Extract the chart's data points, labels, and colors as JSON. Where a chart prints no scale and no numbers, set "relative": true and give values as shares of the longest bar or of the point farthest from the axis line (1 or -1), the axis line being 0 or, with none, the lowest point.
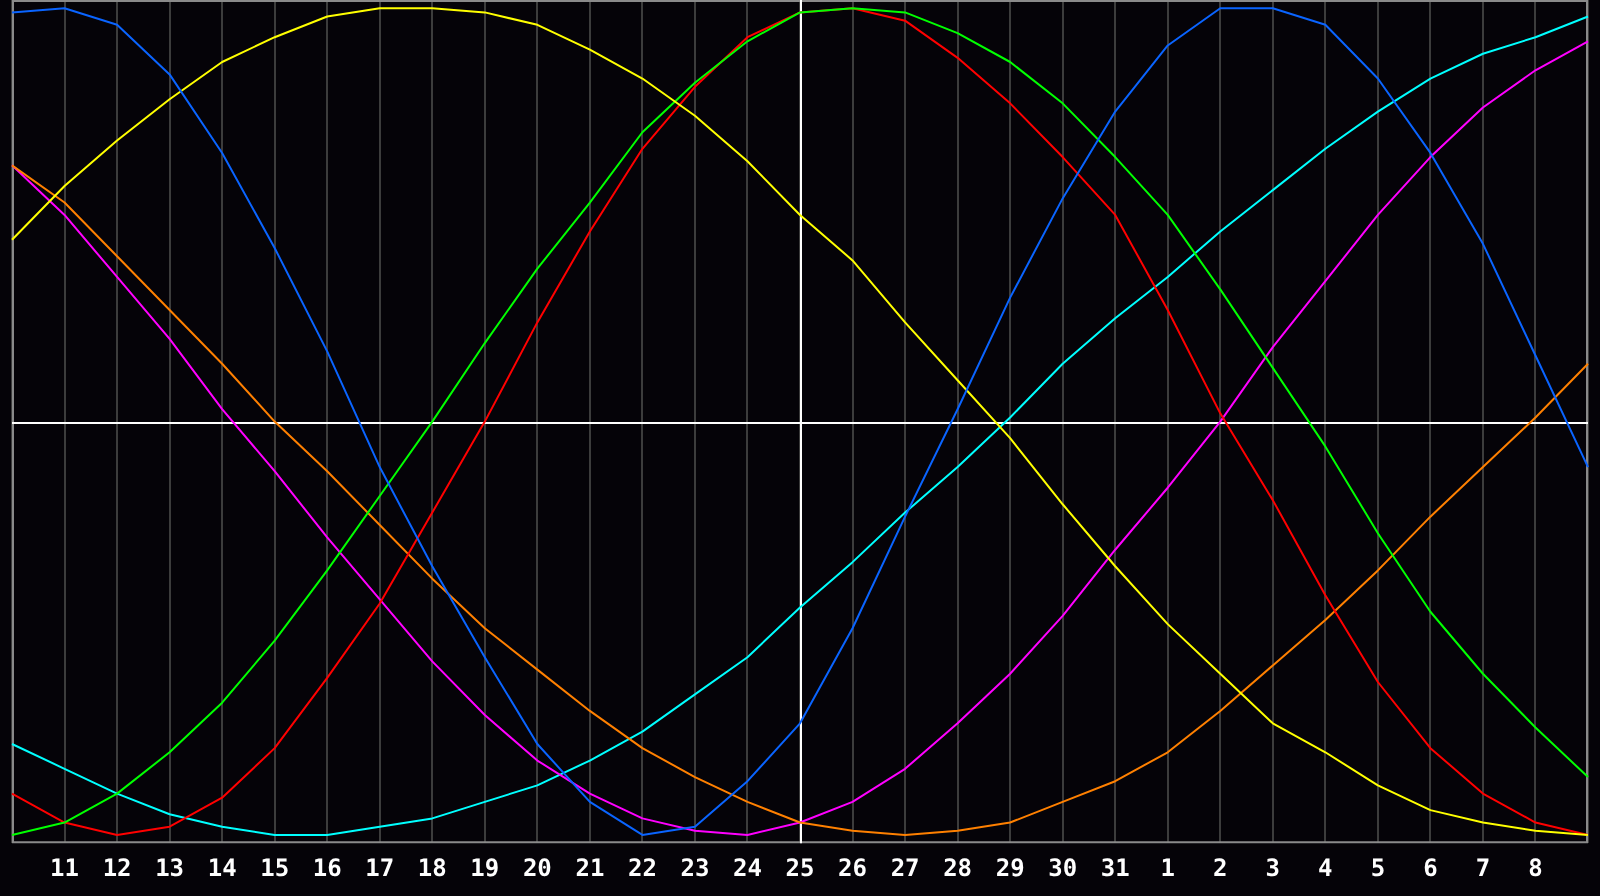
{
  "chart_data": {
    "type": "line",
    "relative": true,
    "grid": "x",
    "legend": false,
    "categories": [
      null,
      "11",
      "12",
      "13",
      "14",
      "15",
      "16",
      "17",
      "18",
      "19",
      "20",
      "21",
      "22",
      "23",
      "24",
      "25",
      "26",
      "27",
      "28",
      "29",
      "30",
      "31",
      "1",
      "2",
      "3",
      "4",
      "5",
      "6",
      "7",
      "8",
      null
    ],
    "series": [
      {
        "color": "#0a64ff",
        "values": [
          0.99,
          1.0,
          0.96,
          0.84,
          0.65,
          0.42,
          0.17,
          -0.11,
          -0.35,
          -0.57,
          -0.78,
          -0.92,
          -1.0,
          -0.98,
          -0.87,
          -0.73,
          -0.5,
          -0.23,
          0.03,
          0.3,
          0.54,
          0.75,
          0.91,
          1.0,
          1.0,
          0.96,
          0.83,
          0.65,
          0.43,
          0.16,
          -0.11
        ]
      },
      {
        "color": "#ffff00",
        "values": [
          0.44,
          0.57,
          0.68,
          0.78,
          0.87,
          0.93,
          0.98,
          1.0,
          1.0,
          0.99,
          0.96,
          0.9,
          0.83,
          0.74,
          0.63,
          0.5,
          0.39,
          0.24,
          0.1,
          -0.04,
          -0.2,
          -0.35,
          -0.49,
          -0.61,
          -0.73,
          -0.8,
          -0.88,
          -0.94,
          -0.97,
          -0.99,
          -1.0
        ]
      },
      {
        "color": "#00ff00",
        "values": [
          -1.0,
          -0.97,
          -0.9,
          -0.8,
          -0.68,
          -0.53,
          -0.36,
          -0.18,
          0.0,
          0.19,
          0.37,
          0.53,
          0.7,
          0.82,
          0.92,
          0.99,
          1.0,
          0.99,
          0.94,
          0.87,
          0.77,
          0.64,
          0.5,
          0.32,
          0.13,
          -0.06,
          -0.27,
          -0.46,
          -0.61,
          -0.74,
          -0.86
        ]
      },
      {
        "color": "#ff0000",
        "values": [
          -0.9,
          -0.97,
          -1.0,
          -0.98,
          -0.91,
          -0.79,
          -0.62,
          -0.44,
          -0.22,
          0.0,
          0.24,
          0.46,
          0.66,
          0.81,
          0.93,
          0.99,
          1.0,
          0.97,
          0.88,
          0.77,
          0.64,
          0.5,
          0.27,
          0.02,
          -0.19,
          -0.42,
          -0.63,
          -0.79,
          -0.9,
          -0.97,
          -1.0
        ]
      },
      {
        "color": "#ff8000",
        "values": [
          0.62,
          0.53,
          0.4,
          0.27,
          0.14,
          0.0,
          -0.12,
          -0.25,
          -0.38,
          -0.5,
          -0.6,
          -0.7,
          -0.79,
          -0.86,
          -0.92,
          -0.97,
          -0.99,
          -1.0,
          -0.99,
          -0.97,
          -0.92,
          -0.87,
          -0.8,
          -0.7,
          -0.59,
          -0.48,
          -0.36,
          -0.23,
          -0.11,
          0.01,
          0.14
        ]
      },
      {
        "color": "#ff00ff",
        "values": [
          0.62,
          0.5,
          0.35,
          0.2,
          0.03,
          -0.12,
          -0.28,
          -0.43,
          -0.58,
          -0.71,
          -0.82,
          -0.9,
          -0.96,
          -0.99,
          -1.0,
          -0.97,
          -0.92,
          -0.84,
          -0.73,
          -0.61,
          -0.47,
          -0.31,
          -0.16,
          0.0,
          0.18,
          0.34,
          0.5,
          0.64,
          0.76,
          0.85,
          0.92
        ]
      },
      {
        "color": "#00ffff",
        "values": [
          -0.78,
          -0.84,
          -0.9,
          -0.95,
          -0.98,
          -1.0,
          -1.0,
          -0.98,
          -0.96,
          -0.92,
          -0.88,
          -0.82,
          -0.75,
          -0.66,
          -0.57,
          -0.45,
          -0.34,
          -0.22,
          -0.11,
          0.01,
          0.14,
          0.25,
          0.35,
          0.46,
          0.56,
          0.66,
          0.75,
          0.83,
          0.89,
          0.93,
          0.98
        ]
      }
    ],
    "ref_lines": [
      {
        "axis": "x",
        "value": "25",
        "color": "#ffffff"
      },
      {
        "axis": "y",
        "value": 0,
        "color": "#ffffff"
      }
    ]
  }
}
